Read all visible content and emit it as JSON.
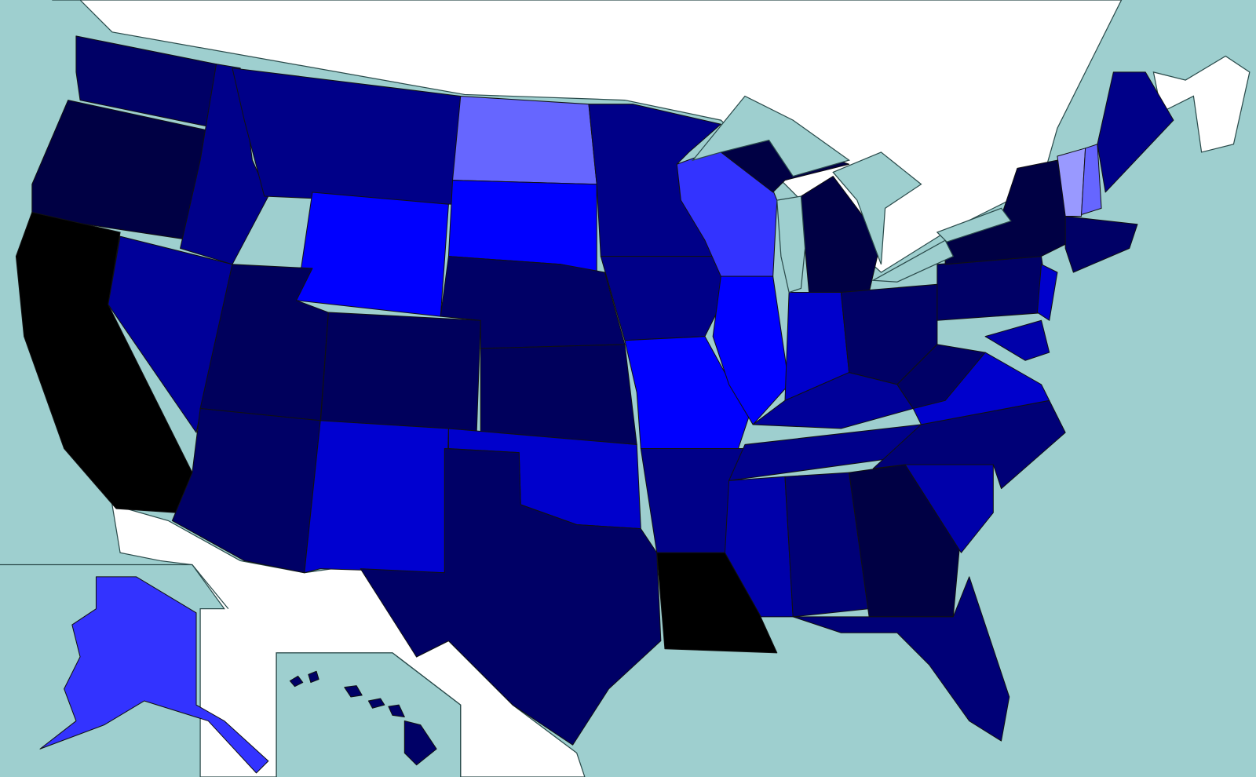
{
  "map": {
    "region_colors": [
      "#000066",
      "#000044",
      "#000000",
      "#000099",
      "#00008a",
      "#000088",
      "#0000ff",
      "#00005c",
      "#00005c",
      "#000066",
      "#0000d0",
      "#6666ff",
      "#0000ff",
      "#000066",
      "#00005c",
      "#0000cc",
      "#000066",
      "#000088",
      "#000088",
      "#0000ff",
      "#000088",
      "#000000",
      "#3333ff",
      "#0000ff",
      "#000044",
      "#0000cc",
      "#000066",
      "#000099",
      "#00008a",
      "#0000aa",
      "#000077",
      "#000044",
      "#000077",
      "#0000aa",
      "#000077",
      "#0000cc",
      "#000066",
      "#000066",
      "#000044",
      "#0000cc",
      "#0000aa",
      "#9999ff",
      "#6666ff",
      "#000088",
      "#000066",
      "#3333ff",
      "#000066"
    ]
  }
}
